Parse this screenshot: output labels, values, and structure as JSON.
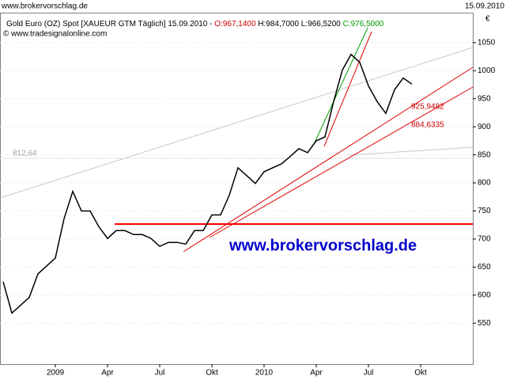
{
  "chart_data": {
    "type": "line",
    "site": "www.brokervorschlag.de",
    "date": "15.09.2010",
    "header": [
      {
        "text": "Gold Euro (OZ) Spot [XAUEUR GTM  Täglich] 15.09.2010 - ",
        "color": "#000000"
      },
      {
        "text": "O:967,1400",
        "color": "#cc0000"
      },
      {
        "text": " H:984,7000 L:966,5200 ",
        "color": "#000000"
      },
      {
        "text": "C:976,5000",
        "color": "#009900"
      }
    ],
    "copyright": "© www.tradesignalonline.com",
    "watermark": "www.brokervorschlag.de",
    "currency": "€",
    "annotations": [
      "812,64",
      "925,9482",
      "884,6335"
    ],
    "color": "#000000",
    "categories": [
      null,
      null,
      null,
      null,
      null,
      null,
      "2009",
      null,
      null,
      null,
      null,
      null,
      "Apr",
      null,
      null,
      null,
      null,
      null,
      "Jul",
      null,
      null,
      null,
      null,
      null,
      "Okt",
      null,
      null,
      null,
      null,
      null,
      "2010",
      null,
      null,
      null,
      null,
      null,
      "Apr",
      null,
      null,
      null,
      null,
      null,
      "Jul",
      null,
      null,
      null,
      null,
      null,
      "Okt"
    ],
    "values": [
      624,
      568,
      582,
      596,
      638,
      652,
      666,
      736,
      785,
      750,
      750,
      722,
      701,
      715,
      715,
      708,
      708,
      701,
      687,
      694,
      694,
      691,
      715,
      715,
      743,
      743,
      778,
      827,
      813,
      799,
      820,
      827,
      834,
      847,
      861,
      854,
      875,
      882,
      945,
      1001,
      1029,
      1015,
      973,
      945,
      924,
      966,
      987,
      976,
      null
    ],
    "ylim": [
      477,
      1102
    ],
    "yticks": [
      550,
      600,
      650,
      700,
      750,
      800,
      850,
      900,
      950,
      1000,
      1050
    ],
    "grid": true
  }
}
